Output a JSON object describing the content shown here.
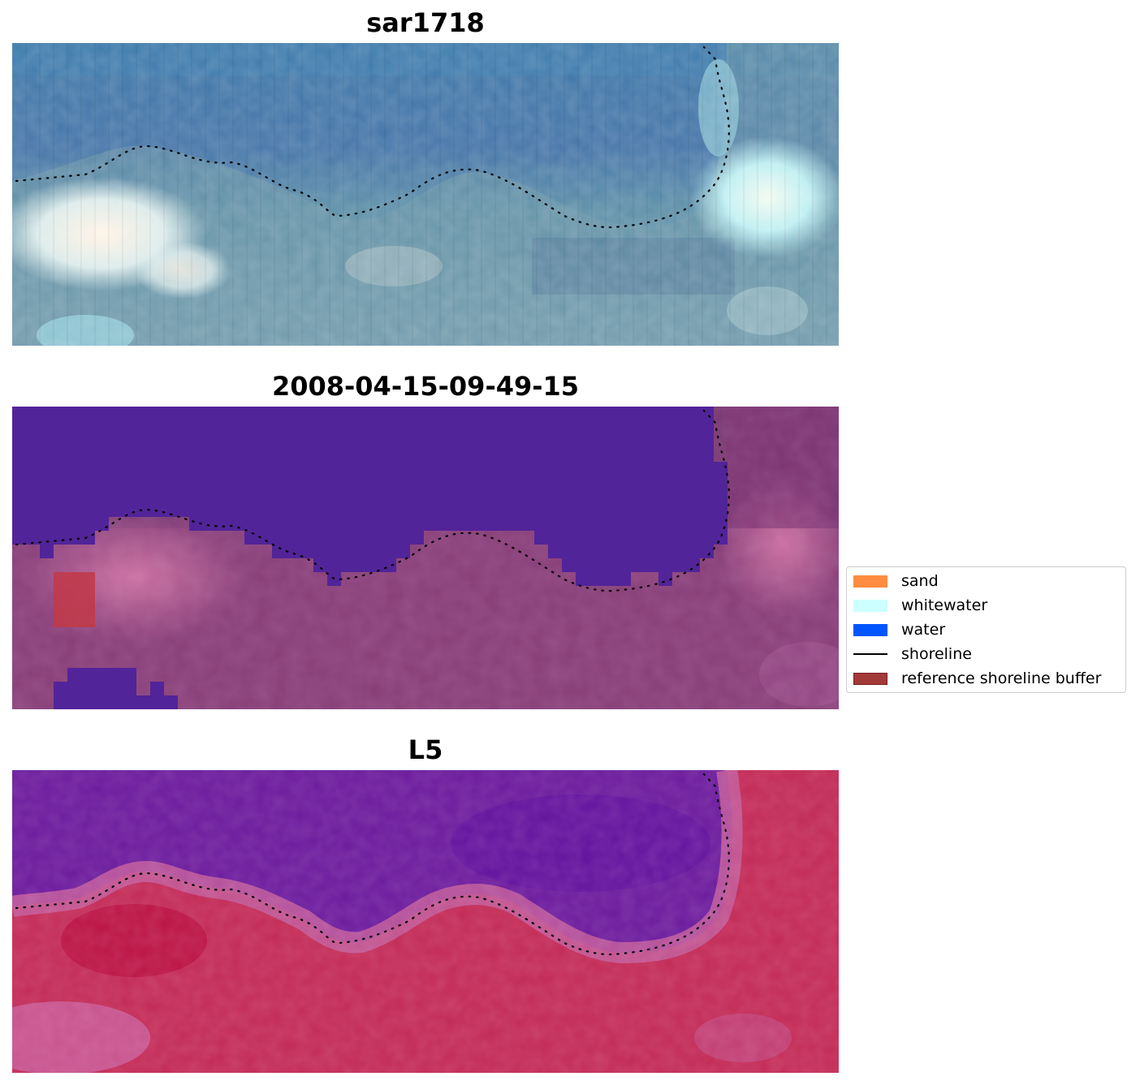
{
  "panels": [
    {
      "title": "sar1718"
    },
    {
      "title": "2008-04-15-09-49-15"
    },
    {
      "title": "L5"
    }
  ],
  "legend": {
    "items": [
      {
        "label": "sand",
        "color": "#ff8c40",
        "kind": "patch"
      },
      {
        "label": "whitewater",
        "color": "#ccffff",
        "kind": "patch"
      },
      {
        "label": "water",
        "color": "#0055ff",
        "kind": "patch"
      },
      {
        "label": "shoreline",
        "color": "#000000",
        "kind": "line"
      },
      {
        "label": "reference shoreline buffer",
        "color": "#a33a3a",
        "kind": "patch"
      }
    ]
  }
}
